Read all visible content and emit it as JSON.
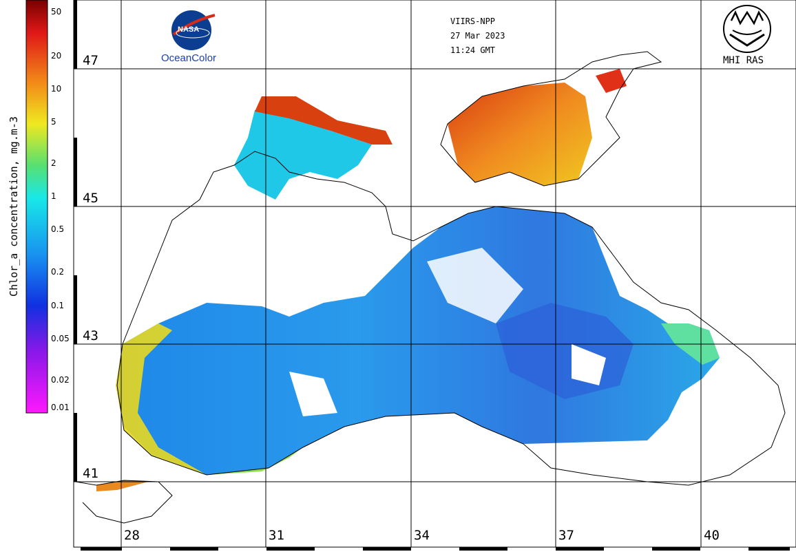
{
  "header": {
    "sensor": "VIIRS-NPP",
    "date": "27 Mar 2023",
    "time": "11:24 GMT"
  },
  "logos": {
    "nasa_text": "NASA",
    "oceancolor_label": "OceanColor",
    "mhi_label": "MHI RAS"
  },
  "colorbar": {
    "title": "Chlor_a concentration, mg.m-3",
    "ticks": [
      "50",
      "20",
      "10",
      "5",
      "2",
      "1",
      "0.5",
      "0.2",
      "0.1",
      "0.05",
      "0.02",
      "0.01"
    ]
  },
  "grid": {
    "latitudes": [
      "47",
      "45",
      "43",
      "41"
    ],
    "longitudes": [
      "28",
      "31",
      "34",
      "37",
      "40"
    ]
  },
  "colors": {
    "land": "#ffffff",
    "coastline": "#000000",
    "grid": "#000000",
    "low_chl": "#2a7de8",
    "mid_chl": "#22c6e0",
    "high_chl": "#e85818"
  }
}
